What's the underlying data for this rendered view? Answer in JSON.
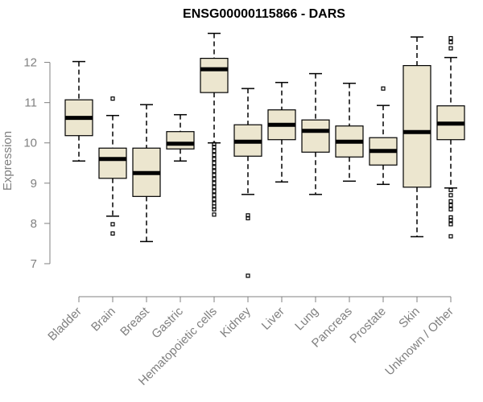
{
  "chart_data": {
    "type": "box",
    "title": "ENSG00000115866 - DARS",
    "xlabel": "",
    "ylabel": "Expression",
    "ylim": [
      6.6,
      12.85
    ],
    "yticks": [
      7,
      8,
      9,
      10,
      11,
      12
    ],
    "grid": false,
    "colors": {
      "box_fill": "#ece6cf",
      "stroke": "#000000",
      "axis_text": "#808080"
    },
    "categories": [
      "Bladder",
      "Brain",
      "Breast",
      "Gastric",
      "Hematopoietic cells",
      "Kidney",
      "Liver",
      "Lung",
      "Pancreas",
      "Prostate",
      "Skin",
      "Unknown / Other"
    ],
    "series": [
      {
        "boxes": [
          {
            "whisker_low": 9.55,
            "q1": 10.18,
            "median": 10.62,
            "q3": 11.07,
            "whisker_high": 12.02,
            "outliers": []
          },
          {
            "whisker_low": 8.18,
            "q1": 9.12,
            "median": 9.6,
            "q3": 9.87,
            "whisker_high": 10.68,
            "outliers": [
              11.1,
              7.98,
              7.75
            ]
          },
          {
            "whisker_low": 7.55,
            "q1": 8.67,
            "median": 9.25,
            "q3": 9.87,
            "whisker_high": 10.95,
            "outliers": []
          },
          {
            "whisker_low": 9.55,
            "q1": 9.85,
            "median": 9.98,
            "q3": 10.28,
            "whisker_high": 10.7,
            "outliers": []
          },
          {
            "whisker_low": 10.0,
            "q1": 11.25,
            "median": 11.83,
            "q3": 12.1,
            "whisker_high": 12.72,
            "outliers": [
              9.97,
              9.9,
              9.8,
              9.7,
              9.6,
              9.5,
              9.4,
              9.3,
              9.2,
              9.1,
              9.0,
              8.9,
              8.8,
              8.7,
              8.6,
              8.5,
              8.42,
              8.35,
              8.22
            ]
          },
          {
            "whisker_low": 8.72,
            "q1": 9.67,
            "median": 10.03,
            "q3": 10.45,
            "whisker_high": 11.35,
            "outliers": [
              8.2,
              8.13,
              6.7
            ]
          },
          {
            "whisker_low": 9.03,
            "q1": 10.08,
            "median": 10.45,
            "q3": 10.82,
            "whisker_high": 11.5,
            "outliers": []
          },
          {
            "whisker_low": 8.72,
            "q1": 9.77,
            "median": 10.3,
            "q3": 10.57,
            "whisker_high": 11.72,
            "outliers": []
          },
          {
            "whisker_low": 9.05,
            "q1": 9.65,
            "median": 10.03,
            "q3": 10.42,
            "whisker_high": 11.48,
            "outliers": []
          },
          {
            "whisker_low": 8.97,
            "q1": 9.45,
            "median": 9.8,
            "q3": 10.13,
            "whisker_high": 10.93,
            "outliers": [
              11.35
            ]
          },
          {
            "whisker_low": 7.67,
            "q1": 8.9,
            "median": 10.27,
            "q3": 11.92,
            "whisker_high": 12.63,
            "outliers": []
          },
          {
            "whisker_low": 8.88,
            "q1": 10.08,
            "median": 10.48,
            "q3": 10.92,
            "whisker_high": 12.12,
            "outliers": [
              12.6,
              12.5,
              12.35,
              8.83,
              8.7,
              8.55,
              8.45,
              8.35,
              8.15,
              8.08,
              7.98,
              7.68
            ]
          }
        ]
      }
    ]
  }
}
